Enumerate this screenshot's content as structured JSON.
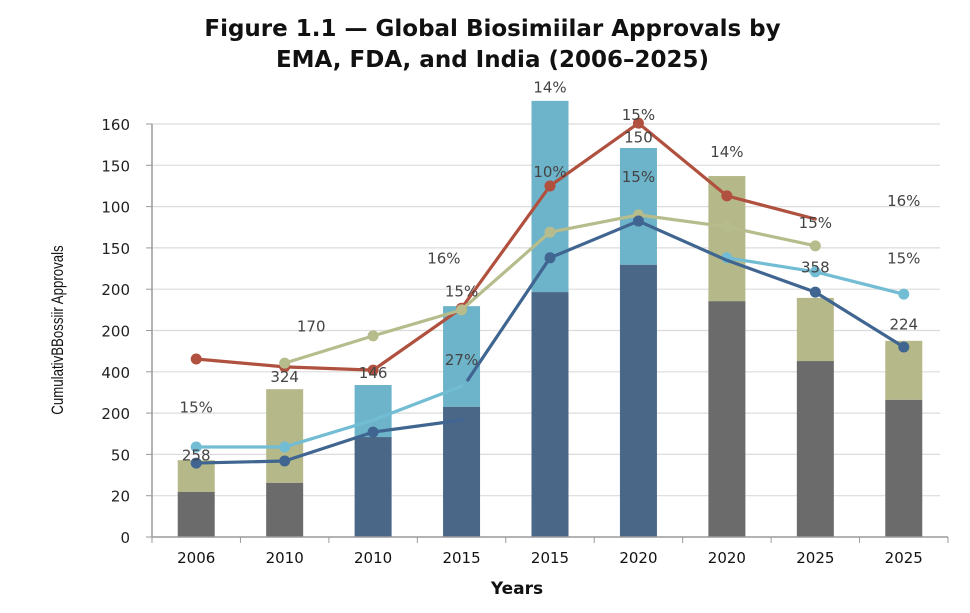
{
  "chart_data": {
    "type": "bar",
    "title_line1": "Figure 1.1 — Global Biosimiilar Approvals by",
    "title_line2": "EMA, FDA, and India (2006–2025)",
    "xlabel": "Years",
    "ylabel": "CumulativBBossiir Approvals",
    "categories": [
      "2006",
      "2010",
      "2010",
      "2015",
      "2015",
      "2020",
      "2020",
      "2025",
      "2025"
    ],
    "y_tick_labels": [
      "0",
      "20",
      "50",
      "200",
      "400",
      "200",
      "200",
      "150",
      "100",
      "150",
      "160"
    ],
    "y_scale_note": "values expressed in gridline units (0 = bottom gridline, 10 = top gridline) because printed tick labels are non-monotonic",
    "ylim": [
      0,
      10
    ],
    "grid": true,
    "colors": {
      "gray": "#6b6b6b",
      "olive": "#b5b98a",
      "navy": "#4a6788",
      "lightblue": "#6db3c9",
      "red": "#b0503e",
      "olive_line": "#b7bc8c",
      "lightblue_line": "#72bcd4",
      "navy_line": "#3f6590"
    },
    "bars": [
      {
        "bottom_color": "gray",
        "top_color": "olive",
        "bottom": 1.09,
        "total": 1.86
      },
      {
        "bottom_color": "gray",
        "top_color": "olive",
        "bottom": 1.31,
        "total": 3.58
      },
      {
        "bottom_color": "navy",
        "top_color": "lightblue",
        "bottom": 2.42,
        "total": 3.68
      },
      {
        "bottom_color": "navy",
        "top_color": "lightblue",
        "bottom": 3.15,
        "total": 5.59
      },
      {
        "bottom_color": "navy",
        "top_color": "lightblue",
        "bottom": 5.93,
        "total": 10.56
      },
      {
        "bottom_color": "navy",
        "top_color": "lightblue",
        "bottom": 6.59,
        "total": 9.42
      },
      {
        "bottom_color": "gray",
        "top_color": "olive",
        "bottom": 5.71,
        "total": 8.74
      },
      {
        "bottom_color": "gray",
        "top_color": "olive",
        "bottom": 4.26,
        "total": 5.79
      },
      {
        "bottom_color": "gray",
        "top_color": "olive",
        "bottom": 3.32,
        "total": 4.75
      }
    ],
    "series": [
      {
        "name": "red-line",
        "color": "red",
        "segments": [
          [
            [
              0,
              4.31
            ],
            [
              1,
              4.12
            ],
            [
              2,
              4.04
            ],
            [
              3,
              5.54
            ],
            [
              4,
              8.5
            ],
            [
              5,
              10.02
            ],
            [
              6,
              8.26
            ],
            [
              7,
              7.7
            ]
          ]
        ],
        "markers": [
          0,
          1,
          2,
          3,
          4,
          5,
          6
        ]
      },
      {
        "name": "olive-line",
        "color": "olive_line",
        "segments": [
          [
            [
              1,
              4.21
            ],
            [
              2,
              4.87
            ],
            [
              3,
              5.5
            ],
            [
              4,
              7.38
            ],
            [
              5,
              7.8
            ],
            [
              6,
              7.51
            ],
            [
              7,
              7.05
            ]
          ]
        ],
        "markers": [
          0,
          1,
          2,
          3,
          4,
          5,
          6
        ]
      },
      {
        "name": "lightblue-line",
        "color": "lightblue_line",
        "segments": [
          [
            [
              0,
              2.18
            ],
            [
              1,
              2.18
            ],
            [
              2,
              2.83
            ],
            [
              3,
              3.65
            ]
          ],
          [
            [
              6,
              6.76
            ],
            [
              7,
              6.42
            ],
            [
              8,
              5.88
            ]
          ]
        ],
        "markers_seg": [
          [
            0,
            1
          ],
          [
            0,
            1,
            2
          ]
        ]
      },
      {
        "name": "navy-line",
        "color": "navy_line",
        "segments": [
          [
            [
              0,
              1.79
            ],
            [
              1,
              1.84
            ],
            [
              2,
              2.54
            ],
            [
              3,
              2.83
            ]
          ],
          [
            [
              3.07,
              3.8
            ],
            [
              4,
              6.76
            ],
            [
              5,
              7.65
            ],
            [
              6,
              6.7
            ],
            [
              7,
              5.93
            ],
            [
              8,
              4.6
            ]
          ]
        ],
        "markers_seg": [
          [
            0,
            1,
            2
          ],
          [
            1,
            2,
            4,
            5
          ]
        ]
      }
    ],
    "annotations": [
      {
        "text": "258",
        "x": 0,
        "y": 1.85
      },
      {
        "text": "15%",
        "x": 0,
        "y": 3.02
      },
      {
        "text": "324",
        "x": 1,
        "y": 3.75
      },
      {
        "text": "146",
        "x": 2,
        "y": 3.85
      },
      {
        "text": "170",
        "x": 1.3,
        "y": 4.98
      },
      {
        "text": "16%",
        "x": 2.8,
        "y": 6.62
      },
      {
        "text": "15%",
        "x": 3,
        "y": 5.82
      },
      {
        "text": "27%",
        "x": 3,
        "y": 4.16
      },
      {
        "text": "14%",
        "x": 4,
        "y": 10.76
      },
      {
        "text": "10%",
        "x": 4,
        "y": 8.72
      },
      {
        "text": "15%",
        "x": 5,
        "y": 10.1
      },
      {
        "text": "150",
        "x": 5,
        "y": 9.55
      },
      {
        "text": "15%",
        "x": 5,
        "y": 8.6
      },
      {
        "text": "14%",
        "x": 6,
        "y": 9.2
      },
      {
        "text": "15%",
        "x": 7,
        "y": 7.48
      },
      {
        "text": "358",
        "x": 7,
        "y": 6.4
      },
      {
        "text": "16%",
        "x": 8,
        "y": 8.02
      },
      {
        "text": "15%",
        "x": 8,
        "y": 6.62
      },
      {
        "text": "224",
        "x": 8,
        "y": 5.02
      }
    ]
  }
}
